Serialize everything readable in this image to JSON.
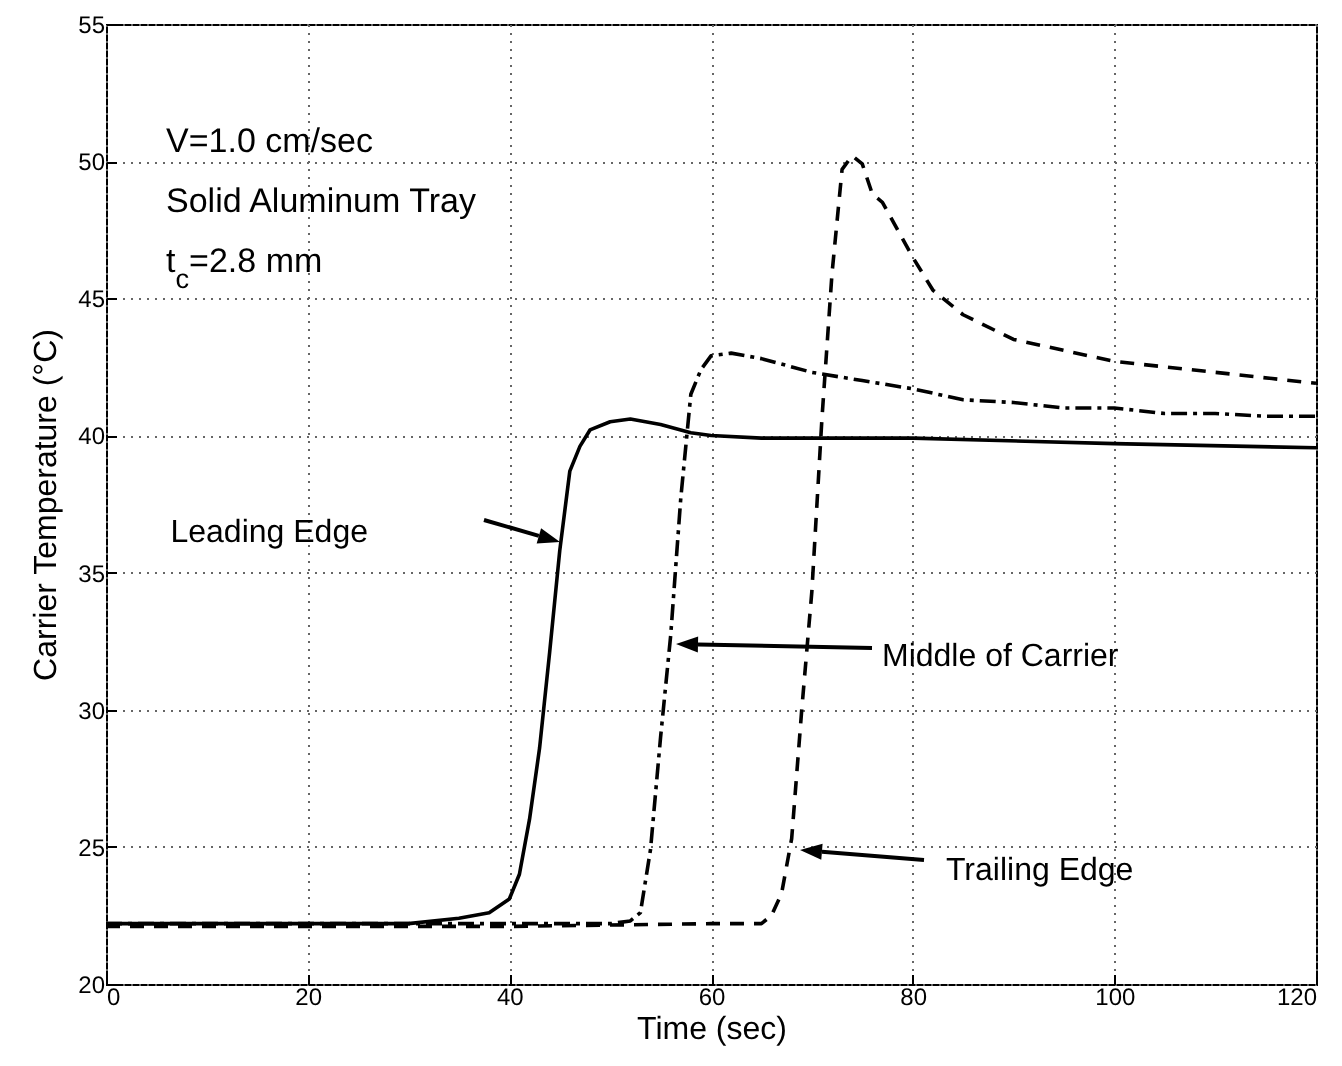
{
  "chart_data": {
    "type": "line",
    "xlabel": "Time (sec)",
    "ylabel": "Carrier Temperature (°C)",
    "xlim": [
      0,
      120
    ],
    "ylim": [
      20,
      55
    ],
    "xticks": [
      0,
      20,
      40,
      60,
      80,
      100,
      120
    ],
    "yticks": [
      20,
      25,
      30,
      35,
      40,
      45,
      50,
      55
    ],
    "grid": true,
    "marker": "none",
    "annotations": [
      "V=1.0 cm/sec",
      "Solid Aluminum Tray",
      "t$_{c}$=2.8 mm",
      "Leading Edge",
      "Middle of Carrier",
      "Trailing Edge"
    ],
    "series": [
      {
        "color": "#000000",
        "line_style": "solid",
        "x": [
          0,
          10,
          20,
          30,
          35,
          38,
          40,
          41,
          42,
          43,
          44,
          45,
          46,
          47,
          48,
          50,
          52,
          55,
          58,
          60,
          65,
          80,
          100,
          120
        ],
        "values": [
          22.2,
          22.2,
          22.2,
          22.2,
          22.4,
          22.6,
          23.1,
          24,
          26,
          28.6,
          32.1,
          35.8,
          38.7,
          39.6,
          40.2,
          40.5,
          40.6,
          40.4,
          40.1,
          40,
          39.9,
          39.9,
          39.7,
          39.55
        ]
      },
      {
        "color": "#000000",
        "line_style": "dashdot",
        "x": [
          0,
          20,
          40,
          50,
          52,
          53,
          54,
          55,
          56,
          57,
          58,
          59,
          60,
          62,
          65,
          70,
          75,
          80,
          85,
          90,
          95,
          100,
          105,
          110,
          115,
          120
        ],
        "values": [
          22.2,
          22.2,
          22.2,
          22.2,
          22.3,
          22.6,
          24.9,
          29,
          32.7,
          37.7,
          41.5,
          42.4,
          42.9,
          43,
          42.8,
          42.3,
          42,
          41.7,
          41.3,
          41.2,
          41,
          41,
          40.8,
          40.8,
          40.7,
          40.7
        ]
      },
      {
        "color": "#000000",
        "line_style": "dashed",
        "x": [
          0,
          20,
          40,
          60,
          65,
          66,
          67,
          68,
          69,
          70,
          71,
          72,
          73,
          74,
          75,
          76,
          77,
          80,
          82,
          85,
          90,
          95,
          100,
          110,
          120
        ],
        "values": [
          22.1,
          22.1,
          22.1,
          22.2,
          22.2,
          22.5,
          23.3,
          25.3,
          30,
          34.3,
          40.6,
          45.9,
          49.7,
          50.2,
          49.9,
          48.8,
          48.5,
          46.5,
          45.3,
          44.4,
          43.5,
          43.1,
          42.7,
          42.3,
          41.9
        ]
      }
    ]
  }
}
